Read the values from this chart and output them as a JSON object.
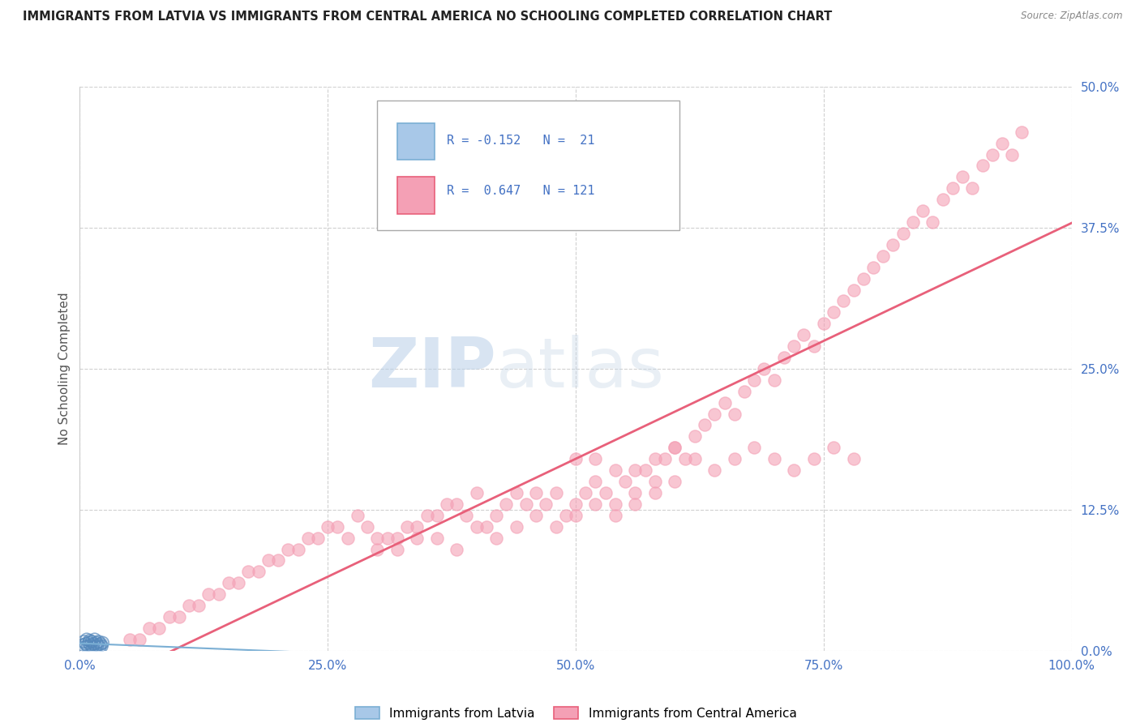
{
  "title": "IMMIGRANTS FROM LATVIA VS IMMIGRANTS FROM CENTRAL AMERICA NO SCHOOLING COMPLETED CORRELATION CHART",
  "source": "Source: ZipAtlas.com",
  "ylabel": "No Schooling Completed",
  "background_color": "#ffffff",
  "watermark_zip": "ZIP",
  "watermark_atlas": "atlas",
  "color_latvia": "#a8c8e8",
  "color_central": "#f4a0b5",
  "color_trend_latvia": "#7bafd4",
  "color_trend_central": "#e8607a",
  "tick_color": "#4472c4",
  "xlim": [
    0.0,
    1.0
  ],
  "ylim": [
    0.0,
    0.5
  ],
  "xticks": [
    0.0,
    0.25,
    0.5,
    0.75,
    1.0
  ],
  "xtick_labels": [
    "0.0%",
    "25.0%",
    "50.0%",
    "75.0%",
    "100.0%"
  ],
  "yticks": [
    0.0,
    0.125,
    0.25,
    0.375,
    0.5
  ],
  "ytick_labels": [
    "0.0%",
    "12.5%",
    "25.0%",
    "37.5%",
    "50.0%"
  ],
  "latvia_x": [
    0.003,
    0.004,
    0.005,
    0.006,
    0.007,
    0.008,
    0.009,
    0.01,
    0.011,
    0.012,
    0.013,
    0.014,
    0.015,
    0.016,
    0.017,
    0.018,
    0.019,
    0.02,
    0.021,
    0.022,
    0.023
  ],
  "latvia_y": [
    0.005,
    0.008,
    0.003,
    0.006,
    0.01,
    0.004,
    0.007,
    0.009,
    0.005,
    0.008,
    0.003,
    0.006,
    0.01,
    0.004,
    0.007,
    0.005,
    0.008,
    0.003,
    0.006,
    0.004,
    0.007
  ],
  "central_x": [
    0.05,
    0.06,
    0.07,
    0.08,
    0.09,
    0.1,
    0.11,
    0.12,
    0.13,
    0.14,
    0.15,
    0.16,
    0.17,
    0.18,
    0.19,
    0.2,
    0.21,
    0.22,
    0.23,
    0.24,
    0.25,
    0.26,
    0.27,
    0.28,
    0.29,
    0.3,
    0.31,
    0.32,
    0.33,
    0.34,
    0.35,
    0.36,
    0.37,
    0.38,
    0.39,
    0.4,
    0.41,
    0.42,
    0.43,
    0.44,
    0.45,
    0.46,
    0.47,
    0.48,
    0.49,
    0.5,
    0.51,
    0.52,
    0.53,
    0.54,
    0.55,
    0.56,
    0.57,
    0.58,
    0.59,
    0.6,
    0.61,
    0.62,
    0.63,
    0.64,
    0.65,
    0.66,
    0.67,
    0.68,
    0.69,
    0.7,
    0.71,
    0.72,
    0.73,
    0.74,
    0.75,
    0.76,
    0.77,
    0.78,
    0.79,
    0.8,
    0.81,
    0.82,
    0.83,
    0.84,
    0.85,
    0.86,
    0.87,
    0.88,
    0.89,
    0.9,
    0.91,
    0.92,
    0.93,
    0.94,
    0.95,
    0.3,
    0.32,
    0.34,
    0.36,
    0.38,
    0.4,
    0.42,
    0.44,
    0.46,
    0.48,
    0.5,
    0.52,
    0.54,
    0.56,
    0.58,
    0.6,
    0.5,
    0.52,
    0.54,
    0.56,
    0.58,
    0.6,
    0.62,
    0.64,
    0.66,
    0.68,
    0.7,
    0.72,
    0.74,
    0.76,
    0.78
  ],
  "central_y": [
    0.01,
    0.01,
    0.02,
    0.02,
    0.03,
    0.03,
    0.04,
    0.04,
    0.05,
    0.05,
    0.06,
    0.06,
    0.07,
    0.07,
    0.08,
    0.08,
    0.09,
    0.09,
    0.1,
    0.1,
    0.11,
    0.11,
    0.1,
    0.12,
    0.11,
    0.09,
    0.1,
    0.1,
    0.11,
    0.11,
    0.12,
    0.12,
    0.13,
    0.13,
    0.12,
    0.14,
    0.11,
    0.12,
    0.13,
    0.14,
    0.13,
    0.14,
    0.13,
    0.14,
    0.12,
    0.13,
    0.14,
    0.15,
    0.14,
    0.13,
    0.15,
    0.14,
    0.16,
    0.15,
    0.17,
    0.18,
    0.17,
    0.19,
    0.2,
    0.21,
    0.22,
    0.21,
    0.23,
    0.24,
    0.25,
    0.24,
    0.26,
    0.27,
    0.28,
    0.27,
    0.29,
    0.3,
    0.31,
    0.32,
    0.33,
    0.34,
    0.35,
    0.36,
    0.37,
    0.38,
    0.39,
    0.38,
    0.4,
    0.41,
    0.42,
    0.41,
    0.43,
    0.44,
    0.45,
    0.44,
    0.46,
    0.1,
    0.09,
    0.1,
    0.1,
    0.09,
    0.11,
    0.1,
    0.11,
    0.12,
    0.11,
    0.12,
    0.13,
    0.12,
    0.13,
    0.14,
    0.15,
    0.17,
    0.17,
    0.16,
    0.16,
    0.17,
    0.18,
    0.17,
    0.16,
    0.17,
    0.18,
    0.17,
    0.16,
    0.17,
    0.18,
    0.17
  ]
}
